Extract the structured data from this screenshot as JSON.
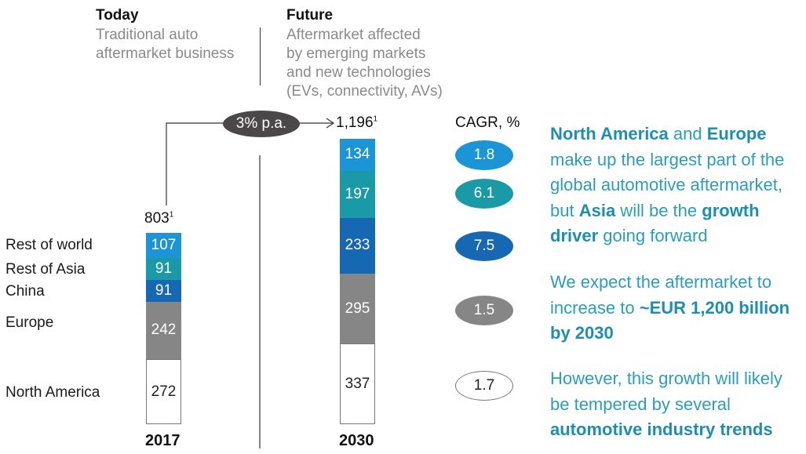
{
  "headers": {
    "today": {
      "title": "Today",
      "subtitle": [
        "Traditional auto",
        "aftermarket business"
      ]
    },
    "future": {
      "title": "Future",
      "subtitle": [
        "Aftermarket affected",
        "by emerging markets",
        "and new technologies",
        "(EVs, connectivity, AVs)"
      ]
    }
  },
  "growth_label": "3% p.a.",
  "cagr_header": "CAGR, %",
  "totals": {
    "2017": "803",
    "2030": "1,196",
    "footnote": "1"
  },
  "colors": {
    "rest_of_world": "#1b95d6",
    "rest_of_asia": "#1a9aa6",
    "china": "#1668b3",
    "europe": "#868686",
    "north_america": "#ffffff",
    "text_accent": "#2a9dbf",
    "growth_pill": "#4a4848"
  },
  "chart_data": {
    "type": "bar",
    "stacked": true,
    "title": "",
    "xlabel": "",
    "ylabel": "",
    "categories": [
      "2017",
      "2030"
    ],
    "series": [
      {
        "name": "North America",
        "values": [
          272,
          337
        ],
        "cagr": "1.7"
      },
      {
        "name": "Europe",
        "values": [
          242,
          295
        ],
        "cagr": "1.5"
      },
      {
        "name": "China",
        "values": [
          91,
          233
        ],
        "cagr": "7.5"
      },
      {
        "name": "Rest of Asia",
        "values": [
          91,
          197
        ],
        "cagr": "6.1"
      },
      {
        "name": "Rest of world",
        "values": [
          107,
          134
        ],
        "cagr": "1.8"
      }
    ],
    "totals": [
      803,
      1196
    ],
    "growth_annotation": "3% p.a.",
    "legend": "left-labels",
    "grid": false
  },
  "text_blocks": [
    [
      {
        "t": "North America",
        "b": true
      },
      {
        "t": " and ",
        "b": false
      },
      {
        "t": "Europe",
        "b": true
      },
      {
        "t": " make up the largest part of the global automotive aftermarket, but ",
        "b": false
      },
      {
        "t": "Asia",
        "b": true
      },
      {
        "t": " will be the ",
        "b": false
      },
      {
        "t": "growth driver",
        "b": true
      },
      {
        "t": " going forward",
        "b": false
      }
    ],
    [
      {
        "t": "We expect the aftermarket to increase to ",
        "b": false
      },
      {
        "t": "~EUR 1,200 billion by 2030",
        "b": true
      }
    ],
    [
      {
        "t": "However, this growth will likely be tempered by several ",
        "b": false
      },
      {
        "t": "automotive industry trends",
        "b": true
      }
    ]
  ]
}
